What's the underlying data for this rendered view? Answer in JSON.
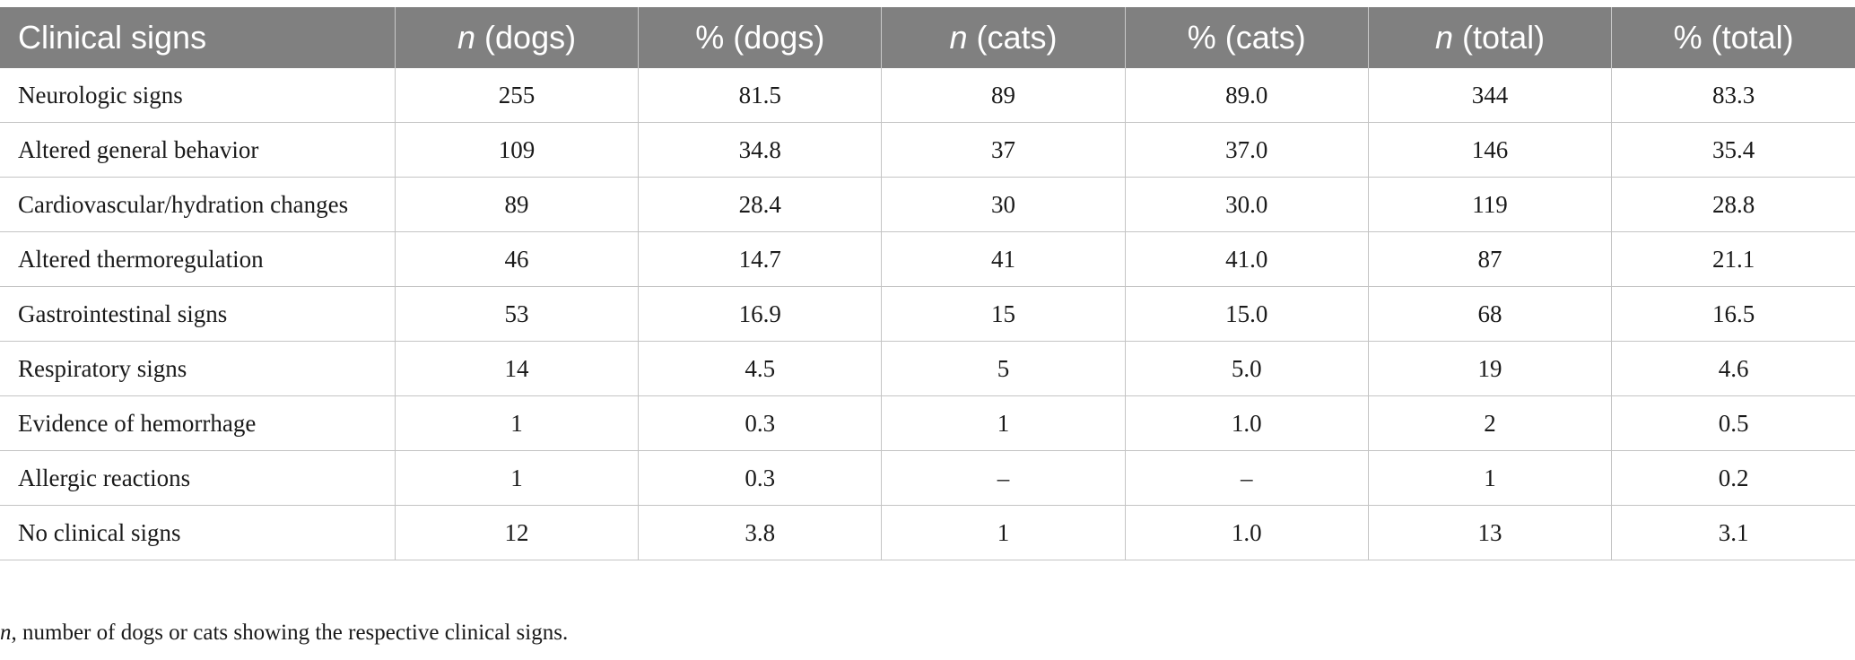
{
  "table": {
    "header": {
      "col0": "Clinical signs",
      "col1_var": "n",
      "col1_rest": " (dogs)",
      "col2": "% (dogs)",
      "col3_var": "n",
      "col3_rest": " (cats)",
      "col4": "% (cats)",
      "col5_var": "n",
      "col5_rest": " (total)",
      "col6": "% (total)"
    },
    "rows": [
      [
        "Neurologic signs",
        "255",
        "81.5",
        "89",
        "89.0",
        "344",
        "83.3"
      ],
      [
        "Altered general behavior",
        "109",
        "34.8",
        "37",
        "37.0",
        "146",
        "35.4"
      ],
      [
        "Cardiovascular/hydration changes",
        "89",
        "28.4",
        "30",
        "30.0",
        "119",
        "28.8"
      ],
      [
        "Altered thermoregulation",
        "46",
        "14.7",
        "41",
        "41.0",
        "87",
        "21.1"
      ],
      [
        "Gastrointestinal signs",
        "53",
        "16.9",
        "15",
        "15.0",
        "68",
        "16.5"
      ],
      [
        "Respiratory signs",
        "14",
        "4.5",
        "5",
        "5.0",
        "19",
        "4.6"
      ],
      [
        "Evidence of hemorrhage",
        "1",
        "0.3",
        "1",
        "1.0",
        "2",
        "0.5"
      ],
      [
        "Allergic reactions",
        "1",
        "0.3",
        "–",
        "–",
        "1",
        "0.2"
      ],
      [
        "No clinical signs",
        "12",
        "3.8",
        "1",
        "1.0",
        "13",
        "3.1"
      ]
    ]
  },
  "footnote": {
    "var": "n",
    "text": ", number of dogs or cats showing the respective clinical signs."
  },
  "colors": {
    "header_bg": "#808080",
    "header_text": "#ffffff",
    "grid": "#c4c4c4"
  }
}
